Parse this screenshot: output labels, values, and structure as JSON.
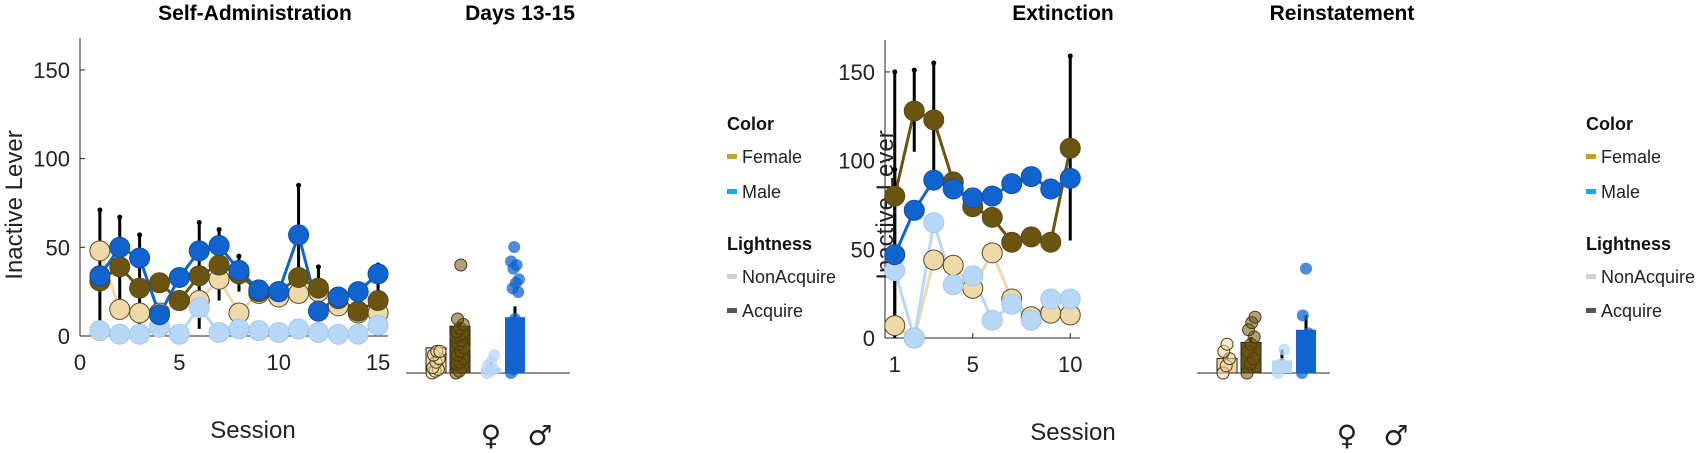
{
  "colors": {
    "female_nonacquire": "#f0d9a8",
    "female_acquire": "#6b5410",
    "male_nonacquire": "#b7d7f7",
    "male_acquire": "#1164d0",
    "legend_female": "#c8a01e",
    "legend_male": "#1aa7f0",
    "legend_nonacquire": "#d0d0d0",
    "legend_acquire": "#555555",
    "axis": "#222222",
    "errorbar": "#000000"
  },
  "legend": {
    "color_title": "Color",
    "female": "Female",
    "male": "Male",
    "lightness_title": "Lightness",
    "nonacquire": "NonAcquire",
    "acquire": "Acquire"
  },
  "chart_data": [
    {
      "id": "self_admin",
      "type": "line",
      "title": "Self-Administration",
      "xlabel": "Session",
      "ylabel": "Inactive Lever",
      "xlim": [
        0,
        15.5
      ],
      "ylim": [
        0,
        168
      ],
      "xticks": [
        "0",
        "5",
        "10",
        "15"
      ],
      "yticks": [
        "0",
        "50",
        "100",
        "150"
      ],
      "x": [
        1,
        2,
        3,
        4,
        5,
        6,
        7,
        8,
        9,
        10,
        11,
        12,
        13,
        14,
        15
      ],
      "series": [
        {
          "key": "female_nonacquire",
          "values": [
            48,
            15,
            13,
            13,
            20,
            20,
            32,
            13,
            24,
            22,
            24,
            25,
            17,
            13,
            13
          ],
          "err": [
            0,
            0,
            0,
            0,
            0,
            0,
            0,
            0,
            0,
            0,
            0,
            0,
            0,
            0,
            0
          ]
        },
        {
          "key": "female_acquire",
          "values": [
            31,
            39,
            27,
            30,
            20,
            34,
            40,
            35,
            25,
            25,
            33,
            27,
            21,
            14,
            20
          ],
          "err": [
            40,
            28,
            30,
            0,
            0,
            30,
            20,
            10,
            0,
            0,
            0,
            12,
            0,
            0,
            20
          ]
        },
        {
          "key": "male_nonacquire",
          "values": [
            3,
            1,
            1,
            5,
            1,
            16,
            2,
            4,
            3,
            2,
            4,
            2,
            1,
            1,
            6
          ],
          "err": [
            0,
            0,
            0,
            0,
            0,
            0,
            0,
            0,
            0,
            0,
            0,
            0,
            0,
            0,
            0
          ]
        },
        {
          "key": "male_acquire",
          "values": [
            34,
            50,
            44,
            12,
            33,
            48,
            51,
            37,
            26,
            25,
            57,
            14,
            22,
            25,
            35
          ],
          "err": [
            0,
            0,
            0,
            0,
            0,
            0,
            0,
            0,
            0,
            0,
            28,
            0,
            0,
            0,
            0
          ]
        }
      ]
    },
    {
      "id": "days_13_15",
      "type": "bar",
      "title": "Days 13-15",
      "categories": [
        "♀",
        "♂"
      ],
      "ylim": [
        0,
        168
      ],
      "bars": [
        {
          "key": "female_nonacquire",
          "group": 0,
          "value": 14,
          "err": 0,
          "points": [
            0,
            1,
            2,
            3,
            6,
            8,
            10,
            12,
            12
          ]
        },
        {
          "key": "female_acquire",
          "group": 0,
          "value": 26,
          "err": 2,
          "points": [
            0,
            1,
            3,
            5,
            6,
            8,
            10,
            12,
            14,
            16,
            18,
            20,
            21,
            22,
            23,
            25,
            27,
            30,
            60
          ]
        },
        {
          "key": "male_nonacquire",
          "group": 1,
          "value": 3,
          "err": 3,
          "points": [
            0,
            1,
            2,
            4,
            6,
            10
          ]
        },
        {
          "key": "male_acquire",
          "group": 1,
          "value": 31,
          "err": 6,
          "points": [
            0,
            2,
            10,
            22,
            30,
            45,
            47,
            50,
            52,
            58,
            60,
            62,
            70
          ]
        }
      ]
    },
    {
      "id": "extinction",
      "type": "line",
      "title": "Extinction",
      "xlabel": "Session",
      "ylabel": "Inactive Lever",
      "xlim": [
        0.5,
        10.5
      ],
      "ylim": [
        0,
        168
      ],
      "xticks": [
        "1",
        "5",
        "10"
      ],
      "yticks": [
        "0",
        "50",
        "100",
        "150"
      ],
      "x": [
        1,
        2,
        3,
        4,
        5,
        6,
        7,
        8,
        9,
        10
      ],
      "series": [
        {
          "key": "female_nonacquire",
          "values": [
            7,
            0,
            44,
            41,
            28,
            48,
            22,
            12,
            14,
            13
          ],
          "err": [
            0,
            0,
            0,
            0,
            0,
            0,
            0,
            0,
            0,
            0
          ]
        },
        {
          "key": "female_acquire",
          "values": [
            80,
            128,
            123,
            88,
            74,
            68,
            54,
            57,
            54,
            107
          ],
          "err": [
            70,
            23,
            32,
            0,
            0,
            0,
            0,
            0,
            0,
            52
          ]
        },
        {
          "key": "male_nonacquire",
          "values": [
            38,
            0,
            65,
            30,
            35,
            10,
            19,
            10,
            22,
            22
          ],
          "err": [
            0,
            0,
            0,
            0,
            0,
            0,
            0,
            0,
            0,
            0
          ]
        },
        {
          "key": "male_acquire",
          "values": [
            47,
            72,
            89,
            84,
            79,
            80,
            87,
            91,
            84,
            90
          ],
          "err": [
            48,
            0,
            0,
            0,
            0,
            0,
            0,
            0,
            0,
            0
          ]
        }
      ]
    },
    {
      "id": "reinstatement",
      "type": "bar",
      "title": "Reinstatement",
      "categories": [
        "♀",
        "♂"
      ],
      "ylim": [
        0,
        168
      ],
      "bars": [
        {
          "key": "female_nonacquire",
          "group": 0,
          "value": 8,
          "err": 3,
          "points": [
            0,
            4,
            8,
            12,
            16
          ]
        },
        {
          "key": "female_acquire",
          "group": 0,
          "value": 17,
          "err": 3,
          "points": [
            0,
            5,
            8,
            12,
            16,
            20,
            24,
            28,
            31
          ]
        },
        {
          "key": "male_nonacquire",
          "group": 1,
          "value": 7,
          "err": 6,
          "points": [
            0,
            5,
            13
          ]
        },
        {
          "key": "male_acquire",
          "group": 1,
          "value": 24,
          "err": 8,
          "points": [
            0,
            5,
            22,
            32,
            58
          ]
        }
      ]
    }
  ]
}
